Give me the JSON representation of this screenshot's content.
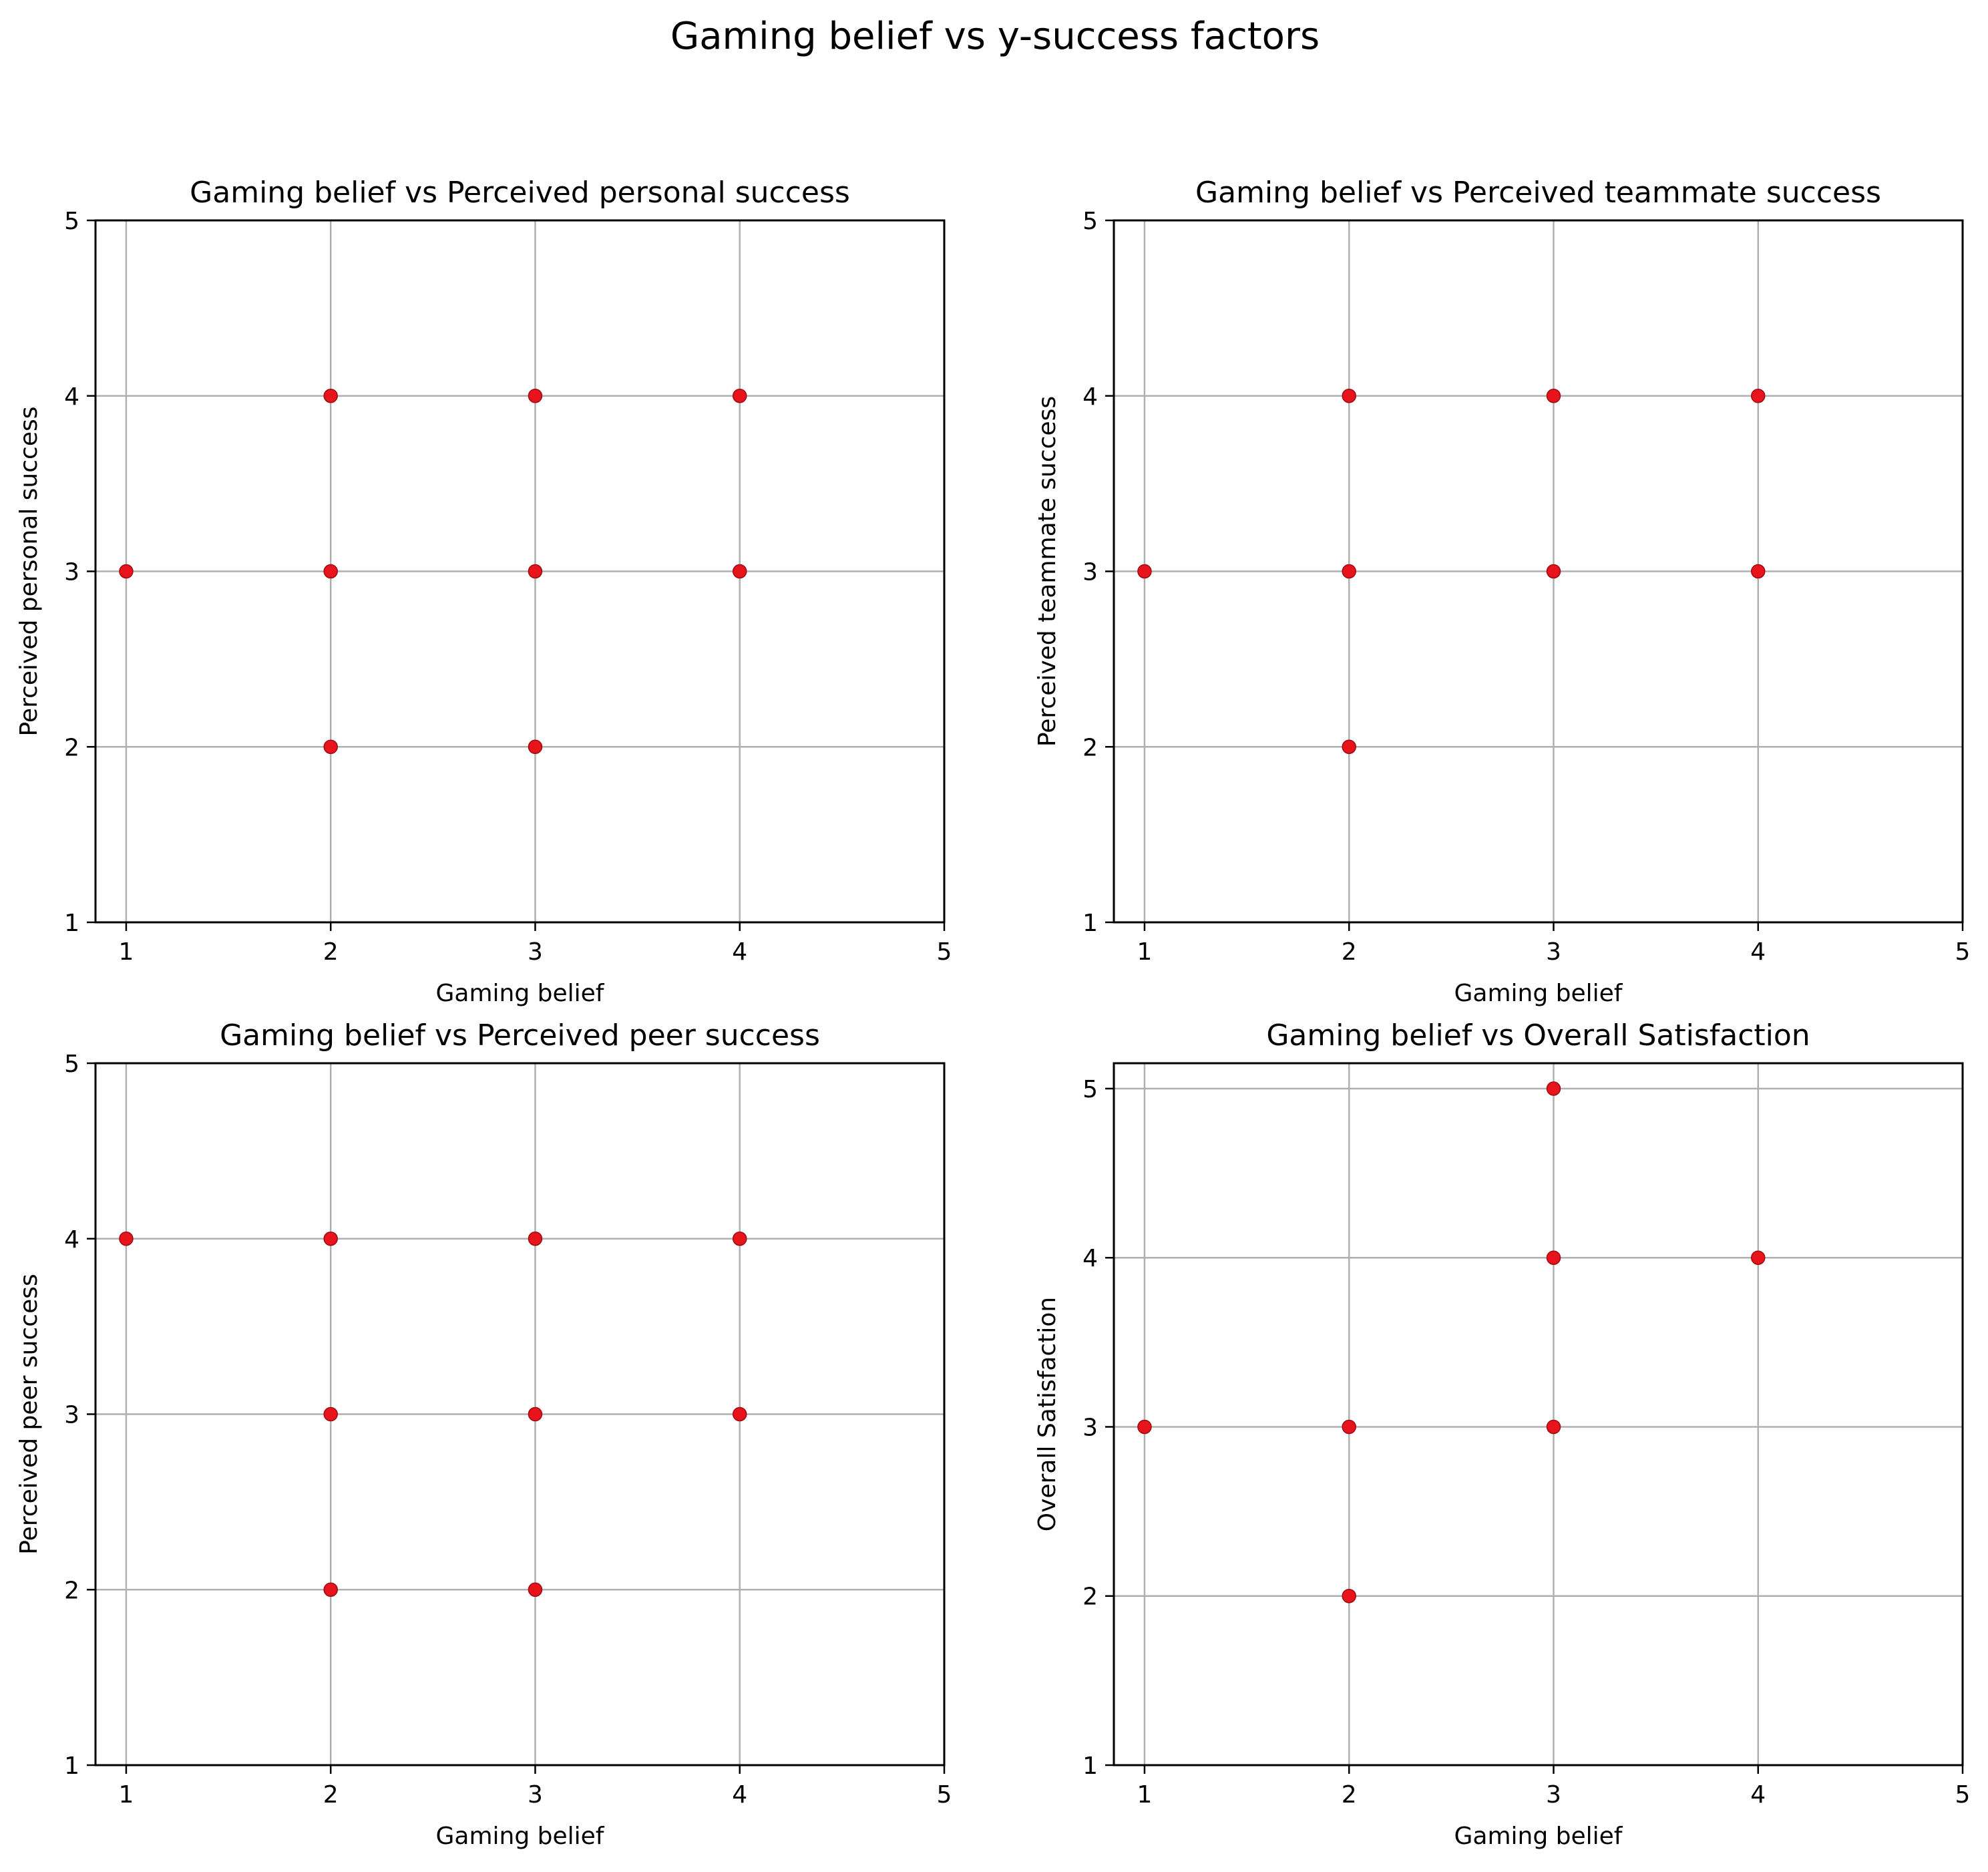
{
  "figure": {
    "suptitle": "Gaming belief vs y-success factors"
  },
  "colors": {
    "background": "#ffffff",
    "grid": "#b0b0b0",
    "axis": "#000000",
    "marker": "#e8141c",
    "marker_edge": "#9e0a10"
  },
  "chart_data": [
    {
      "type": "scatter",
      "title": "Gaming belief vs Perceived personal success",
      "xlabel": "Gaming belief",
      "ylabel": "Perceived personal success",
      "xlim": [
        0.85,
        5
      ],
      "ylim": [
        1,
        5
      ],
      "xticks": [
        1,
        2,
        3,
        4,
        5
      ],
      "yticks": [
        1,
        2,
        3,
        4,
        5
      ],
      "grid": true,
      "points": [
        [
          1,
          3
        ],
        [
          2,
          4
        ],
        [
          2,
          3
        ],
        [
          2,
          2
        ],
        [
          3,
          4
        ],
        [
          3,
          3
        ],
        [
          3,
          2
        ],
        [
          4,
          4
        ],
        [
          4,
          3
        ]
      ]
    },
    {
      "type": "scatter",
      "title": "Gaming belief vs Perceived teammate success",
      "xlabel": "Gaming belief",
      "ylabel": "Perceived teammate success",
      "xlim": [
        0.85,
        5
      ],
      "ylim": [
        1,
        5
      ],
      "xticks": [
        1,
        2,
        3,
        4,
        5
      ],
      "yticks": [
        1,
        2,
        3,
        4,
        5
      ],
      "grid": true,
      "points": [
        [
          1,
          3
        ],
        [
          2,
          4
        ],
        [
          2,
          3
        ],
        [
          2,
          2
        ],
        [
          3,
          4
        ],
        [
          3,
          3
        ],
        [
          4,
          4
        ],
        [
          4,
          3
        ]
      ]
    },
    {
      "type": "scatter",
      "title": "Gaming belief vs Perceived peer success",
      "xlabel": "Gaming belief",
      "ylabel": "Perceived peer success",
      "xlim": [
        0.85,
        5
      ],
      "ylim": [
        1,
        5
      ],
      "xticks": [
        1,
        2,
        3,
        4,
        5
      ],
      "yticks": [
        1,
        2,
        3,
        4,
        5
      ],
      "grid": true,
      "points": [
        [
          1,
          4
        ],
        [
          2,
          4
        ],
        [
          2,
          3
        ],
        [
          2,
          2
        ],
        [
          3,
          4
        ],
        [
          3,
          3
        ],
        [
          3,
          2
        ],
        [
          4,
          4
        ],
        [
          4,
          3
        ]
      ]
    },
    {
      "type": "scatter",
      "title": "Gaming belief vs Overall Satisfaction",
      "xlabel": "Gaming belief",
      "ylabel": "Overall Satisfaction",
      "xlim": [
        0.85,
        5
      ],
      "ylim": [
        1,
        5.15
      ],
      "xticks": [
        1,
        2,
        3,
        4,
        5
      ],
      "yticks": [
        1,
        2,
        3,
        4,
        5
      ],
      "grid": true,
      "points": [
        [
          1,
          3
        ],
        [
          2,
          3
        ],
        [
          2,
          2
        ],
        [
          3,
          5
        ],
        [
          3,
          4
        ],
        [
          3,
          3
        ],
        [
          4,
          4
        ]
      ]
    }
  ]
}
